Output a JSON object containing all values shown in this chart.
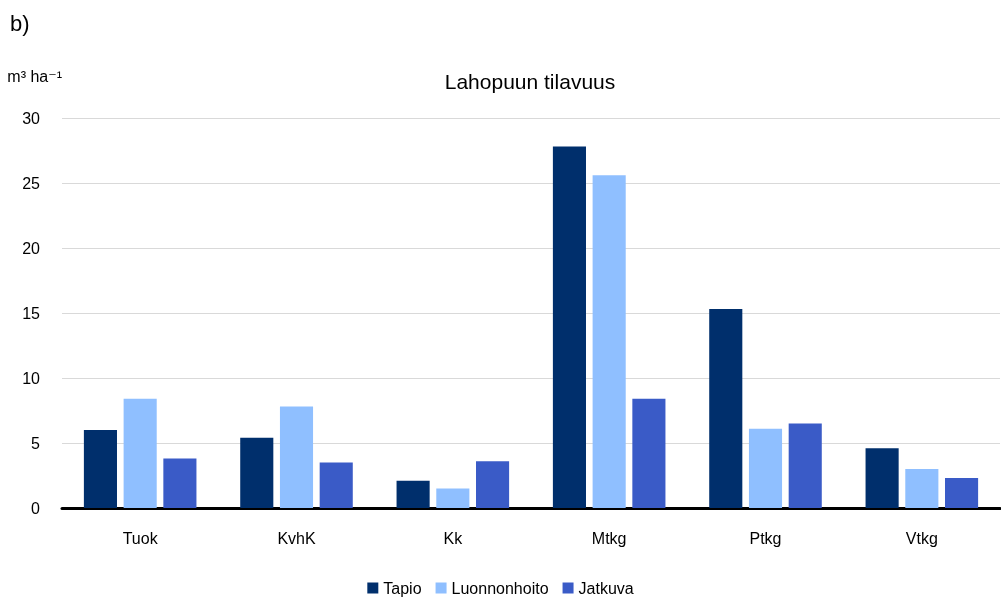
{
  "chart_data": {
    "type": "bar",
    "title": "Lahopuun tilavuus",
    "ylabel": "m³ ha⁻¹",
    "annotations": [
      "b)"
    ],
    "categories": [
      "Tuok",
      "KvhK",
      "Kk",
      "Mtkg",
      "Ptkg",
      "Vtkg"
    ],
    "series": [
      {
        "name": "Tapio",
        "color": "#002f6c",
        "values": [
          6.0,
          5.4,
          2.1,
          27.8,
          15.3,
          4.6
        ]
      },
      {
        "name": "Luonnonhoito",
        "color": "#8fbfff",
        "values": [
          8.4,
          7.8,
          1.5,
          25.6,
          6.1,
          3.0
        ]
      },
      {
        "name": "Jatkuva",
        "color": "#3a5bc7",
        "values": [
          3.8,
          3.5,
          3.6,
          8.4,
          6.5,
          2.3
        ]
      }
    ],
    "ylim": [
      0,
      30
    ],
    "yticks": [
      0,
      5,
      10,
      15,
      20,
      25,
      30
    ],
    "grid": "y",
    "legend": "bottom"
  }
}
